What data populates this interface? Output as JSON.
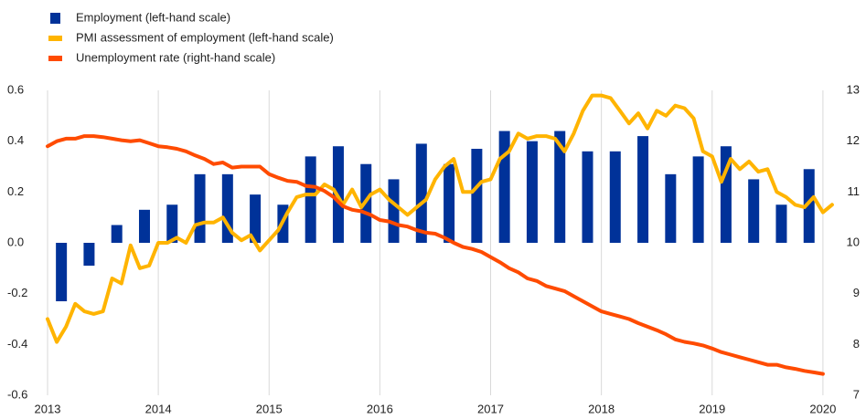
{
  "chart_data": {
    "type": "combo",
    "x": [
      2013,
      2013.083,
      2013.167,
      2013.25,
      2013.333,
      2013.417,
      2013.5,
      2013.583,
      2013.667,
      2013.75,
      2013.833,
      2013.917,
      2014,
      2014.083,
      2014.167,
      2014.25,
      2014.333,
      2014.417,
      2014.5,
      2014.583,
      2014.667,
      2014.75,
      2014.833,
      2014.917,
      2015,
      2015.083,
      2015.167,
      2015.25,
      2015.333,
      2015.417,
      2015.5,
      2015.583,
      2015.667,
      2015.75,
      2015.833,
      2015.917,
      2016,
      2016.083,
      2016.167,
      2016.25,
      2016.333,
      2016.417,
      2016.5,
      2016.583,
      2016.667,
      2016.75,
      2016.833,
      2016.917,
      2017,
      2017.083,
      2017.167,
      2017.25,
      2017.333,
      2017.417,
      2017.5,
      2017.583,
      2017.667,
      2017.75,
      2017.833,
      2017.917,
      2018,
      2018.083,
      2018.167,
      2018.25,
      2018.333,
      2018.417,
      2018.5,
      2018.583,
      2018.667,
      2018.75,
      2018.833,
      2018.917,
      2019,
      2019.083,
      2019.167,
      2019.25,
      2019.333,
      2019.417,
      2019.5,
      2019.583,
      2019.667,
      2019.75,
      2019.833,
      2019.917,
      2020,
      2020.083
    ],
    "series": [
      {
        "name": "Employment (left-hand scale)",
        "type": "bar",
        "color": "#003299",
        "x": [
          2013.125,
          2013.375,
          2013.625,
          2013.875,
          2014.125,
          2014.375,
          2014.625,
          2014.875,
          2015.125,
          2015.375,
          2015.625,
          2015.875,
          2016.125,
          2016.375,
          2016.625,
          2016.875,
          2017.125,
          2017.375,
          2017.625,
          2017.875,
          2018.125,
          2018.375,
          2018.625,
          2018.875,
          2019.125,
          2019.375,
          2019.625,
          2019.875
        ],
        "values": [
          -0.23,
          -0.09,
          0.07,
          0.13,
          0.15,
          0.27,
          0.27,
          0.19,
          0.15,
          0.34,
          0.38,
          0.31,
          0.25,
          0.39,
          0.31,
          0.37,
          0.44,
          0.4,
          0.44,
          0.36,
          0.36,
          0.42,
          0.27,
          0.34,
          0.38,
          0.25,
          0.15,
          0.29
        ]
      },
      {
        "name": "PMI assessment of employment (left-hand scale)",
        "type": "line",
        "color": "#ffb400",
        "values": [
          -0.3,
          -0.39,
          -0.33,
          -0.24,
          -0.27,
          -0.28,
          -0.27,
          -0.14,
          -0.16,
          -0.01,
          -0.1,
          -0.09,
          0.0,
          0.0,
          0.02,
          0.0,
          0.07,
          0.08,
          0.08,
          0.1,
          0.04,
          0.01,
          0.03,
          -0.03,
          0.01,
          0.05,
          0.12,
          0.18,
          0.19,
          0.19,
          0.23,
          0.21,
          0.15,
          0.21,
          0.14,
          0.19,
          0.21,
          0.17,
          0.14,
          0.11,
          0.14,
          0.17,
          0.25,
          0.3,
          0.33,
          0.2,
          0.2,
          0.24,
          0.25,
          0.33,
          0.36,
          0.43,
          0.41,
          0.42,
          0.42,
          0.41,
          0.36,
          0.43,
          0.52,
          0.58,
          0.58,
          0.57,
          0.52,
          0.47,
          0.51,
          0.45,
          0.52,
          0.5,
          0.54,
          0.53,
          0.49,
          0.36,
          0.34,
          0.24,
          0.33,
          0.29,
          0.32,
          0.28,
          0.29,
          0.2,
          0.18,
          0.15,
          0.14,
          0.18,
          0.12,
          0.15
        ]
      },
      {
        "name": "Unemployment rate (right-hand scale)",
        "type": "line",
        "color": "#ff4b00",
        "axis": "y2",
        "values": [
          11.9,
          12.0,
          12.05,
          12.05,
          12.1,
          12.1,
          12.08,
          12.05,
          12.02,
          12.0,
          12.02,
          11.96,
          11.9,
          11.88,
          11.85,
          11.8,
          11.72,
          11.65,
          11.55,
          11.58,
          11.48,
          11.5,
          11.5,
          11.5,
          11.35,
          11.28,
          11.22,
          11.2,
          11.12,
          11.1,
          11.02,
          10.9,
          10.72,
          10.65,
          10.62,
          10.55,
          10.45,
          10.42,
          10.35,
          10.32,
          10.25,
          10.2,
          10.18,
          10.1,
          10.0,
          9.92,
          9.88,
          9.82,
          9.72,
          9.62,
          9.5,
          9.42,
          9.3,
          9.25,
          9.15,
          9.1,
          9.05,
          8.95,
          8.85,
          8.75,
          8.65,
          8.6,
          8.55,
          8.5,
          8.42,
          8.35,
          8.28,
          8.2,
          8.1,
          8.05,
          8.02,
          7.98,
          7.92,
          7.85,
          7.8,
          7.75,
          7.7,
          7.65,
          7.6,
          7.6,
          7.55,
          7.52,
          7.48,
          7.45,
          7.42,
          null
        ]
      }
    ],
    "xlim": [
      2013,
      2020.1
    ],
    "xticks": [
      2013,
      2014,
      2015,
      2016,
      2017,
      2018,
      2019,
      2020
    ],
    "ylim": [
      -0.6,
      0.6
    ],
    "yticks": [
      0.6,
      0.4,
      0.2,
      {
        "value": 0,
        "label": "0.0"
      },
      -0.2,
      -0.4,
      -0.6
    ],
    "y2lim": [
      7,
      13
    ],
    "y2ticks": [
      7,
      8,
      9,
      10,
      11,
      12,
      13
    ],
    "grid": true,
    "legend": "top-left"
  }
}
